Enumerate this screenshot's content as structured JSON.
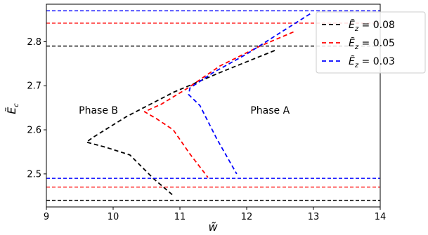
{
  "chart_data": {
    "type": "line",
    "xlabel": "w̃",
    "ylabel": "Ẽ",
    "ylabel_sub": "c",
    "xlim": [
      9,
      14
    ],
    "ylim": [
      2.425,
      2.885
    ],
    "x_ticks": [
      9,
      10,
      11,
      12,
      13,
      14
    ],
    "y_ticks": [
      2.5,
      2.6,
      2.7,
      2.8
    ],
    "grid": false,
    "legend_position": "top-right",
    "annotations": [
      {
        "text": "Phase B",
        "x": 9.78,
        "y": 2.645
      },
      {
        "text": "Phase A",
        "x": 12.35,
        "y": 2.645
      }
    ],
    "series": [
      {
        "name": "Ẽ",
        "name_sub": "z",
        "name_value": " = 0.08",
        "color": "#000000",
        "curve": {
          "x": [
            12.42,
            11.6,
            10.9,
            10.2,
            9.7,
            9.6,
            9.9,
            10.25,
            10.6,
            10.9
          ],
          "y": [
            2.78,
            2.73,
            2.685,
            2.63,
            2.583,
            2.572,
            2.56,
            2.543,
            2.49,
            2.451
          ]
        },
        "horizontal_lines": [
          2.79,
          2.44
        ]
      },
      {
        "name": "Ẽ",
        "name_sub": "z",
        "name_value": " = 0.05",
        "color": "#ff0000",
        "curve": {
          "x": [
            12.7,
            12.2,
            11.6,
            11.1,
            10.72,
            10.47,
            10.65,
            10.9,
            11.15,
            11.42
          ],
          "y": [
            2.822,
            2.79,
            2.745,
            2.693,
            2.658,
            2.641,
            2.625,
            2.6,
            2.545,
            2.492
          ]
        },
        "horizontal_lines": [
          2.842,
          2.47
        ]
      },
      {
        "name": "Ẽ",
        "name_sub": "z",
        "name_value": " = 0.03",
        "color": "#0000ff",
        "curve": {
          "x": [
            12.95,
            12.5,
            12.0,
            11.5,
            11.15,
            11.13,
            11.3,
            11.55,
            11.85
          ],
          "y": [
            2.863,
            2.82,
            2.772,
            2.73,
            2.695,
            2.68,
            2.655,
            2.58,
            2.5
          ]
        },
        "horizontal_lines": [
          2.87,
          2.49
        ]
      }
    ]
  }
}
